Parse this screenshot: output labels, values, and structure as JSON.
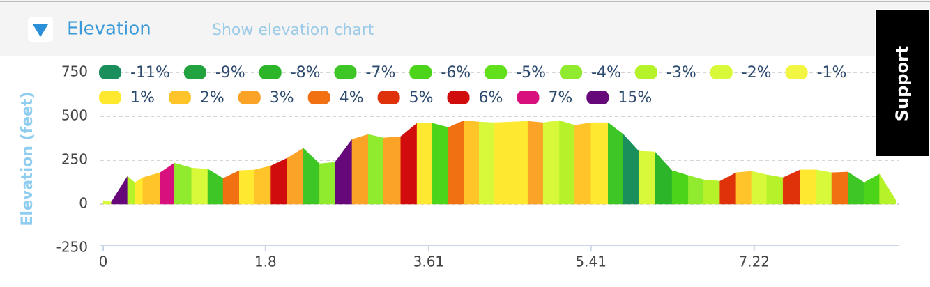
{
  "header": {
    "title": "Elevation",
    "link": "Show elevation chart"
  },
  "support": {
    "label": "Support"
  },
  "chart_data": {
    "type": "area",
    "y_label": "Elevation (feet)",
    "legend": [
      {
        "name": "-11%",
        "color": "#1a8f5c"
      },
      {
        "name": "-9%",
        "color": "#22a33f"
      },
      {
        "name": "-8%",
        "color": "#2db52a"
      },
      {
        "name": "-7%",
        "color": "#3ec626"
      },
      {
        "name": "-6%",
        "color": "#4cd41a"
      },
      {
        "name": "-5%",
        "color": "#62e01c"
      },
      {
        "name": "-4%",
        "color": "#90ea2e"
      },
      {
        "name": "-3%",
        "color": "#b6f22a"
      },
      {
        "name": "-2%",
        "color": "#d8f83a"
      },
      {
        "name": "-1%",
        "color": "#f2f642"
      },
      {
        "name": "1%",
        "color": "#ffe930"
      },
      {
        "name": "2%",
        "color": "#ffc42a"
      },
      {
        "name": "3%",
        "color": "#fba326"
      },
      {
        "name": "4%",
        "color": "#f07012"
      },
      {
        "name": "5%",
        "color": "#e0320a"
      },
      {
        "name": "6%",
        "color": "#d00c0c"
      },
      {
        "name": "7%",
        "color": "#d8107e"
      },
      {
        "name": "15%",
        "color": "#66087a"
      }
    ],
    "x": [
      0,
      0.09,
      0.27,
      0.35,
      0.44,
      0.63,
      0.79,
      0.98,
      1.16,
      1.33,
      1.51,
      1.68,
      1.86,
      2.04,
      2.22,
      2.4,
      2.57,
      2.76,
      2.94,
      3.11,
      3.3,
      3.48,
      3.65,
      3.83,
      4.0,
      4.17,
      4.34,
      4.71,
      4.88,
      5.06,
      5.23,
      5.41,
      5.6,
      5.77,
      5.94,
      6.12,
      6.31,
      6.49,
      6.66,
      6.84,
      7.02,
      7.19,
      7.36,
      7.54,
      7.73,
      7.91,
      8.08,
      8.26,
      8.44,
      8.61,
      8.79
    ],
    "values": [
      20,
      12,
      159,
      123,
      151,
      179,
      234,
      206,
      199,
      147,
      191,
      195,
      218,
      262,
      318,
      230,
      238,
      369,
      397,
      377,
      385,
      461,
      461,
      437,
      476,
      468,
      464,
      472,
      464,
      476,
      449,
      464,
      464,
      397,
      302,
      298,
      191,
      163,
      139,
      131,
      179,
      187,
      167,
      151,
      195,
      195,
      179,
      183,
      123,
      171,
      24
    ],
    "segment_colors": [
      "#d8f83a",
      "#66087a",
      "#b6f22a",
      "#ffe930",
      "#ffc42a",
      "#d8107e",
      "#90ea2e",
      "#d8f83a",
      "#3ec626",
      "#f07012",
      "#ffe930",
      "#ffc42a",
      "#d00c0c",
      "#fba326",
      "#3ec626",
      "#90ea2e",
      "#66087a",
      "#fba326",
      "#90ea2e",
      "#fba326",
      "#d00c0c",
      "#ffe930",
      "#4cd41a",
      "#f07012",
      "#ffc42a",
      "#d8f83a",
      "#ffe930",
      "#fba326",
      "#d8f83a",
      "#b6f22a",
      "#ffc42a",
      "#ffe930",
      "#3ec626",
      "#1a8f5c",
      "#d8f83a",
      "#2db52a",
      "#4cd41a",
      "#90ea2e",
      "#b6f22a",
      "#e0320a",
      "#ffc42a",
      "#d8f83a",
      "#b6f22a",
      "#e0320a",
      "#ffe930",
      "#d8f83a",
      "#f07012",
      "#3ec626",
      "#4cd41a",
      "#b6f22a"
    ],
    "xlim": [
      0,
      8.83
    ],
    "ylim": [
      -250,
      750
    ],
    "xticks": [
      0,
      1.8,
      3.61,
      5.41,
      7.22
    ],
    "yticks": [
      -250,
      0,
      250,
      500,
      750
    ],
    "grid": true
  }
}
